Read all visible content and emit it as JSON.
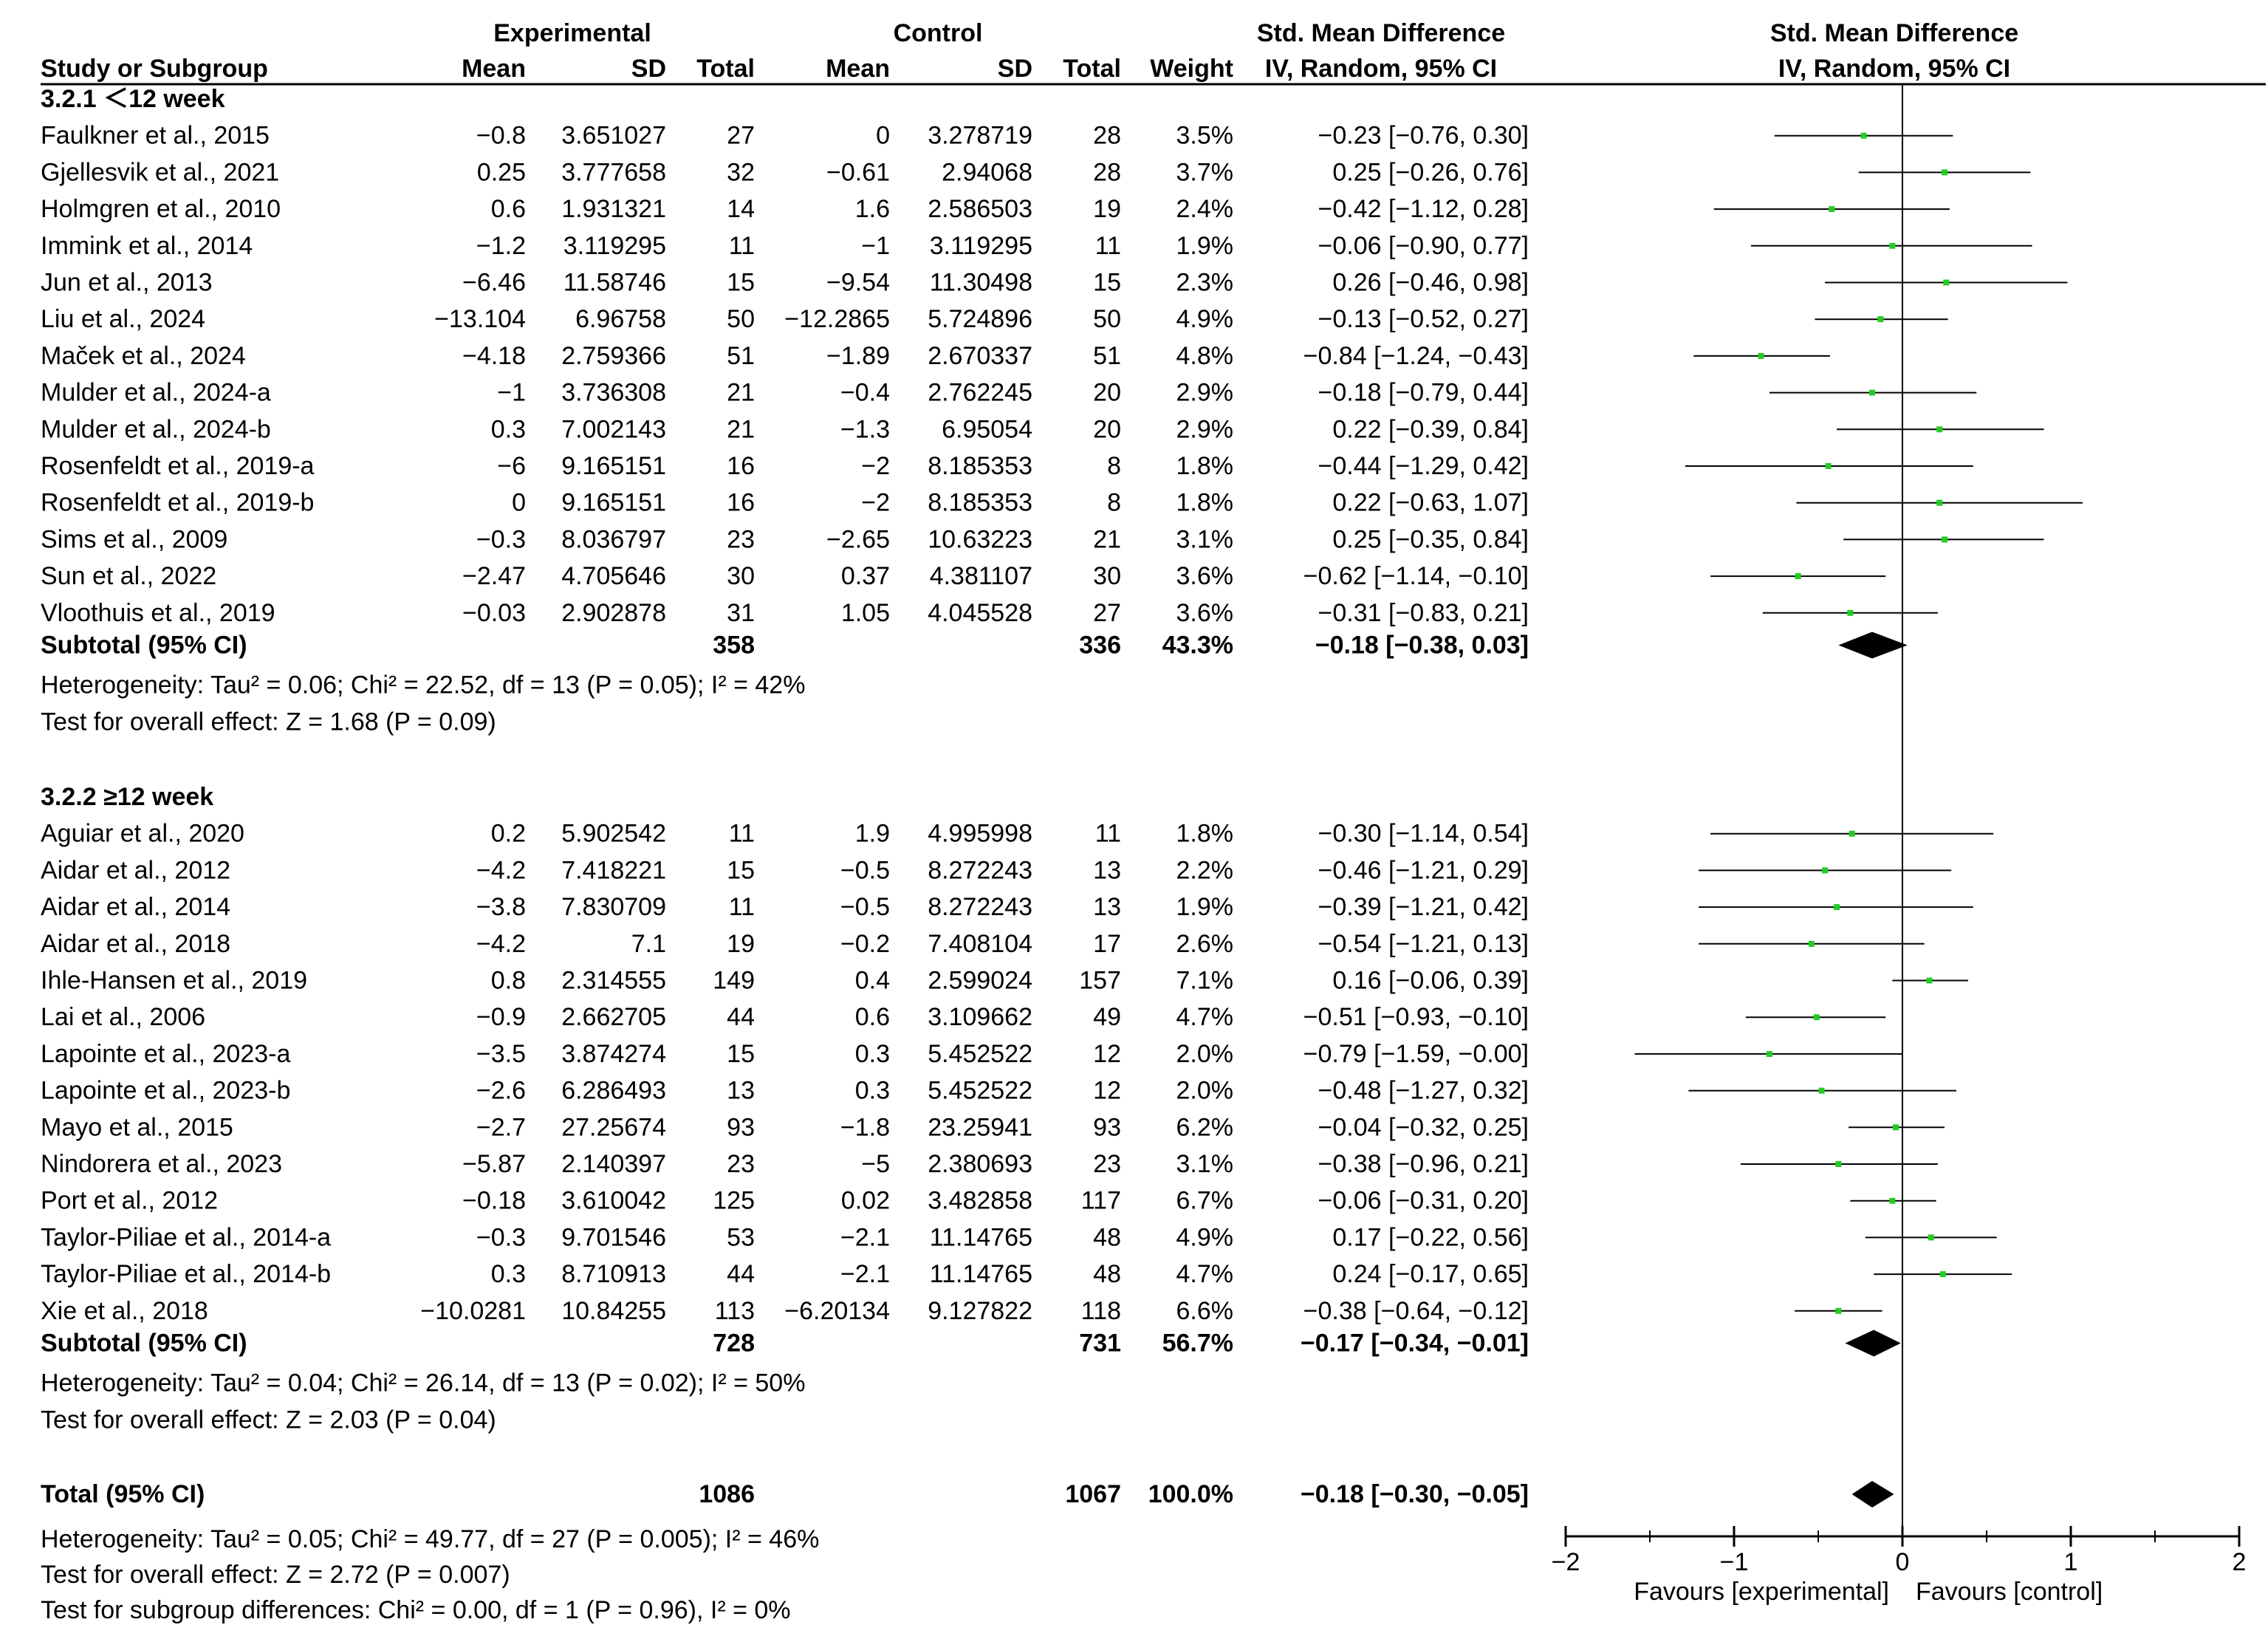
{
  "header": {
    "experimental": "Experimental",
    "control": "Control",
    "smd_table": "Std. Mean Difference",
    "smd_plot": "Std. Mean Difference",
    "study": "Study or Subgroup",
    "mean_e": "Mean",
    "sd_e": "SD",
    "total_e": "Total",
    "mean_c": "Mean",
    "sd_c": "SD",
    "total_c": "Total",
    "weight": "Weight",
    "ci_table": "IV, Random, 95% CI",
    "ci_plot": "IV, Random, 95% CI"
  },
  "colors": {
    "point": "#22cc22",
    "line": "#000000",
    "diamond": "#000000"
  },
  "chart_data": {
    "type": "forest",
    "axis": {
      "xlim": [
        -2,
        2
      ],
      "ticks": [
        -2,
        -1,
        0,
        1,
        2
      ],
      "tick_labels": [
        "−2",
        "−1",
        "0",
        "1",
        "2"
      ],
      "left_label": "Favours [experimental]",
      "right_label": "Favours [control]"
    },
    "subgroups": [
      {
        "title": "3.2.1 ＜12 week",
        "studies": [
          {
            "name": "Faulkner et al., 2015",
            "mean_e": "−0.8",
            "sd_e": "3.651027",
            "n_e": "27",
            "mean_c": "0",
            "sd_c": "3.278719",
            "n_c": "28",
            "weight": "3.5%",
            "ci_text": "−0.23 [−0.76, 0.30]",
            "est": -0.23,
            "lo": -0.76,
            "hi": 0.3
          },
          {
            "name": "Gjellesvik et al., 2021",
            "mean_e": "0.25",
            "sd_e": "3.777658",
            "n_e": "32",
            "mean_c": "−0.61",
            "sd_c": "2.94068",
            "n_c": "28",
            "weight": "3.7%",
            "ci_text": "0.25 [−0.26, 0.76]",
            "est": 0.25,
            "lo": -0.26,
            "hi": 0.76
          },
          {
            "name": "Holmgren et al., 2010",
            "mean_e": "0.6",
            "sd_e": "1.931321",
            "n_e": "14",
            "mean_c": "1.6",
            "sd_c": "2.586503",
            "n_c": "19",
            "weight": "2.4%",
            "ci_text": "−0.42 [−1.12, 0.28]",
            "est": -0.42,
            "lo": -1.12,
            "hi": 0.28
          },
          {
            "name": "Immink et al., 2014",
            "mean_e": "−1.2",
            "sd_e": "3.119295",
            "n_e": "11",
            "mean_c": "−1",
            "sd_c": "3.119295",
            "n_c": "11",
            "weight": "1.9%",
            "ci_text": "−0.06 [−0.90, 0.77]",
            "est": -0.06,
            "lo": -0.9,
            "hi": 0.77
          },
          {
            "name": "Jun et al., 2013",
            "mean_e": "−6.46",
            "sd_e": "11.58746",
            "n_e": "15",
            "mean_c": "−9.54",
            "sd_c": "11.30498",
            "n_c": "15",
            "weight": "2.3%",
            "ci_text": "0.26 [−0.46, 0.98]",
            "est": 0.26,
            "lo": -0.46,
            "hi": 0.98
          },
          {
            "name": "Liu et al., 2024",
            "mean_e": "−13.104",
            "sd_e": "6.96758",
            "n_e": "50",
            "mean_c": "−12.2865",
            "sd_c": "5.724896",
            "n_c": "50",
            "weight": "4.9%",
            "ci_text": "−0.13 [−0.52, 0.27]",
            "est": -0.13,
            "lo": -0.52,
            "hi": 0.27
          },
          {
            "name": "Maček et al., 2024",
            "mean_e": "−4.18",
            "sd_e": "2.759366",
            "n_e": "51",
            "mean_c": "−1.89",
            "sd_c": "2.670337",
            "n_c": "51",
            "weight": "4.8%",
            "ci_text": "−0.84 [−1.24, −0.43]",
            "est": -0.84,
            "lo": -1.24,
            "hi": -0.43
          },
          {
            "name": "Mulder et al., 2024-a",
            "mean_e": "−1",
            "sd_e": "3.736308",
            "n_e": "21",
            "mean_c": "−0.4",
            "sd_c": "2.762245",
            "n_c": "20",
            "weight": "2.9%",
            "ci_text": "−0.18 [−0.79, 0.44]",
            "est": -0.18,
            "lo": -0.79,
            "hi": 0.44
          },
          {
            "name": "Mulder et al., 2024-b",
            "mean_e": "0.3",
            "sd_e": "7.002143",
            "n_e": "21",
            "mean_c": "−1.3",
            "sd_c": "6.95054",
            "n_c": "20",
            "weight": "2.9%",
            "ci_text": "0.22 [−0.39, 0.84]",
            "est": 0.22,
            "lo": -0.39,
            "hi": 0.84
          },
          {
            "name": "Rosenfeldt et al., 2019-a",
            "mean_e": "−6",
            "sd_e": "9.165151",
            "n_e": "16",
            "mean_c": "−2",
            "sd_c": "8.185353",
            "n_c": "8",
            "weight": "1.8%",
            "ci_text": "−0.44 [−1.29, 0.42]",
            "est": -0.44,
            "lo": -1.29,
            "hi": 0.42
          },
          {
            "name": "Rosenfeldt et al., 2019-b",
            "mean_e": "0",
            "sd_e": "9.165151",
            "n_e": "16",
            "mean_c": "−2",
            "sd_c": "8.185353",
            "n_c": "8",
            "weight": "1.8%",
            "ci_text": "0.22 [−0.63, 1.07]",
            "est": 0.22,
            "lo": -0.63,
            "hi": 1.07
          },
          {
            "name": "Sims et al., 2009",
            "mean_e": "−0.3",
            "sd_e": "8.036797",
            "n_e": "23",
            "mean_c": "−2.65",
            "sd_c": "10.63223",
            "n_c": "21",
            "weight": "3.1%",
            "ci_text": "0.25 [−0.35, 0.84]",
            "est": 0.25,
            "lo": -0.35,
            "hi": 0.84
          },
          {
            "name": "Sun et al., 2022",
            "mean_e": "−2.47",
            "sd_e": "4.705646",
            "n_e": "30",
            "mean_c": "0.37",
            "sd_c": "4.381107",
            "n_c": "30",
            "weight": "3.6%",
            "ci_text": "−0.62 [−1.14, −0.10]",
            "est": -0.62,
            "lo": -1.14,
            "hi": -0.1
          },
          {
            "name": "Vloothuis et al., 2019",
            "mean_e": "−0.03",
            "sd_e": "2.902878",
            "n_e": "31",
            "mean_c": "1.05",
            "sd_c": "4.045528",
            "n_c": "27",
            "weight": "3.6%",
            "ci_text": "−0.31 [−0.83, 0.21]",
            "est": -0.31,
            "lo": -0.83,
            "hi": 0.21
          }
        ],
        "subtotal": {
          "label": "Subtotal (95% CI)",
          "n_e": "358",
          "n_c": "336",
          "weight": "43.3%",
          "ci_text": "−0.18 [−0.38, 0.03]",
          "est": -0.18,
          "lo": -0.38,
          "hi": 0.03
        },
        "heterogeneity": "Heterogeneity: Tau² = 0.06; Chi² = 22.52, df = 13 (P = 0.05); I² = 42%",
        "overall_effect": "Test for overall effect: Z = 1.68 (P = 0.09)"
      },
      {
        "title": "3.2.2 ≥12 week",
        "studies": [
          {
            "name": "Aguiar et al., 2020",
            "mean_e": "0.2",
            "sd_e": "5.902542",
            "n_e": "11",
            "mean_c": "1.9",
            "sd_c": "4.995998",
            "n_c": "11",
            "weight": "1.8%",
            "ci_text": "−0.30 [−1.14, 0.54]",
            "est": -0.3,
            "lo": -1.14,
            "hi": 0.54
          },
          {
            "name": "Aidar et al., 2012",
            "mean_e": "−4.2",
            "sd_e": "7.418221",
            "n_e": "15",
            "mean_c": "−0.5",
            "sd_c": "8.272243",
            "n_c": "13",
            "weight": "2.2%",
            "ci_text": "−0.46 [−1.21, 0.29]",
            "est": -0.46,
            "lo": -1.21,
            "hi": 0.29
          },
          {
            "name": "Aidar et al., 2014",
            "mean_e": "−3.8",
            "sd_e": "7.830709",
            "n_e": "11",
            "mean_c": "−0.5",
            "sd_c": "8.272243",
            "n_c": "13",
            "weight": "1.9%",
            "ci_text": "−0.39 [−1.21, 0.42]",
            "est": -0.39,
            "lo": -1.21,
            "hi": 0.42
          },
          {
            "name": "Aidar et al., 2018",
            "mean_e": "−4.2",
            "sd_e": "7.1",
            "n_e": "19",
            "mean_c": "−0.2",
            "sd_c": "7.408104",
            "n_c": "17",
            "weight": "2.6%",
            "ci_text": "−0.54 [−1.21, 0.13]",
            "est": -0.54,
            "lo": -1.21,
            "hi": 0.13
          },
          {
            "name": "Ihle-Hansen et al., 2019",
            "mean_e": "0.8",
            "sd_e": "2.314555",
            "n_e": "149",
            "mean_c": "0.4",
            "sd_c": "2.599024",
            "n_c": "157",
            "weight": "7.1%",
            "ci_text": "0.16 [−0.06, 0.39]",
            "est": 0.16,
            "lo": -0.06,
            "hi": 0.39
          },
          {
            "name": "Lai et al., 2006",
            "mean_e": "−0.9",
            "sd_e": "2.662705",
            "n_e": "44",
            "mean_c": "0.6",
            "sd_c": "3.109662",
            "n_c": "49",
            "weight": "4.7%",
            "ci_text": "−0.51 [−0.93, −0.10]",
            "est": -0.51,
            "lo": -0.93,
            "hi": -0.1
          },
          {
            "name": "Lapointe et al., 2023-a",
            "mean_e": "−3.5",
            "sd_e": "3.874274",
            "n_e": "15",
            "mean_c": "0.3",
            "sd_c": "5.452522",
            "n_c": "12",
            "weight": "2.0%",
            "ci_text": "−0.79 [−1.59, −0.00]",
            "est": -0.79,
            "lo": -1.59,
            "hi": 0.0
          },
          {
            "name": "Lapointe et al., 2023-b",
            "mean_e": "−2.6",
            "sd_e": "6.286493",
            "n_e": "13",
            "mean_c": "0.3",
            "sd_c": "5.452522",
            "n_c": "12",
            "weight": "2.0%",
            "ci_text": "−0.48 [−1.27, 0.32]",
            "est": -0.48,
            "lo": -1.27,
            "hi": 0.32
          },
          {
            "name": "Mayo et al., 2015",
            "mean_e": "−2.7",
            "sd_e": "27.25674",
            "n_e": "93",
            "mean_c": "−1.8",
            "sd_c": "23.25941",
            "n_c": "93",
            "weight": "6.2%",
            "ci_text": "−0.04 [−0.32, 0.25]",
            "est": -0.04,
            "lo": -0.32,
            "hi": 0.25
          },
          {
            "name": "Nindorera et al., 2023",
            "mean_e": "−5.87",
            "sd_e": "2.140397",
            "n_e": "23",
            "mean_c": "−5",
            "sd_c": "2.380693",
            "n_c": "23",
            "weight": "3.1%",
            "ci_text": "−0.38 [−0.96, 0.21]",
            "est": -0.38,
            "lo": -0.96,
            "hi": 0.21
          },
          {
            "name": "Port et al., 2012",
            "mean_e": "−0.18",
            "sd_e": "3.610042",
            "n_e": "125",
            "mean_c": "0.02",
            "sd_c": "3.482858",
            "n_c": "117",
            "weight": "6.7%",
            "ci_text": "−0.06 [−0.31, 0.20]",
            "est": -0.06,
            "lo": -0.31,
            "hi": 0.2
          },
          {
            "name": "Taylor-Piliae et al., 2014-a",
            "mean_e": "−0.3",
            "sd_e": "9.701546",
            "n_e": "53",
            "mean_c": "−2.1",
            "sd_c": "11.14765",
            "n_c": "48",
            "weight": "4.9%",
            "ci_text": "0.17 [−0.22, 0.56]",
            "est": 0.17,
            "lo": -0.22,
            "hi": 0.56
          },
          {
            "name": "Taylor-Piliae et al., 2014-b",
            "mean_e": "0.3",
            "sd_e": "8.710913",
            "n_e": "44",
            "mean_c": "−2.1",
            "sd_c": "11.14765",
            "n_c": "48",
            "weight": "4.7%",
            "ci_text": "0.24 [−0.17, 0.65]",
            "est": 0.24,
            "lo": -0.17,
            "hi": 0.65
          },
          {
            "name": "Xie et al., 2018",
            "mean_e": "−10.0281",
            "sd_e": "10.84255",
            "n_e": "113",
            "mean_c": "−6.20134",
            "sd_c": "9.127822",
            "n_c": "118",
            "weight": "6.6%",
            "ci_text": "−0.38 [−0.64, −0.12]",
            "est": -0.38,
            "lo": -0.64,
            "hi": -0.12
          }
        ],
        "subtotal": {
          "label": "Subtotal (95% CI)",
          "n_e": "728",
          "n_c": "731",
          "weight": "56.7%",
          "ci_text": "−0.17 [−0.34, −0.01]",
          "est": -0.17,
          "lo": -0.34,
          "hi": -0.01
        },
        "heterogeneity": "Heterogeneity: Tau² = 0.04; Chi² = 26.14, df = 13 (P = 0.02); I² = 50%",
        "overall_effect": "Test for overall effect: Z = 2.03 (P = 0.04)"
      }
    ],
    "total": {
      "label": "Total (95% CI)",
      "n_e": "1086",
      "n_c": "1067",
      "weight": "100.0%",
      "ci_text": "−0.18 [−0.30, −0.05]",
      "est": -0.18,
      "lo": -0.3,
      "hi": -0.05
    },
    "footer": [
      "Heterogeneity: Tau² = 0.05; Chi² = 49.77, df = 27 (P = 0.005); I² = 46%",
      "Test for overall effect: Z = 2.72 (P = 0.007)",
      "Test for subgroup differences: Chi² = 0.00, df = 1 (P = 0.96), I² = 0%"
    ]
  }
}
